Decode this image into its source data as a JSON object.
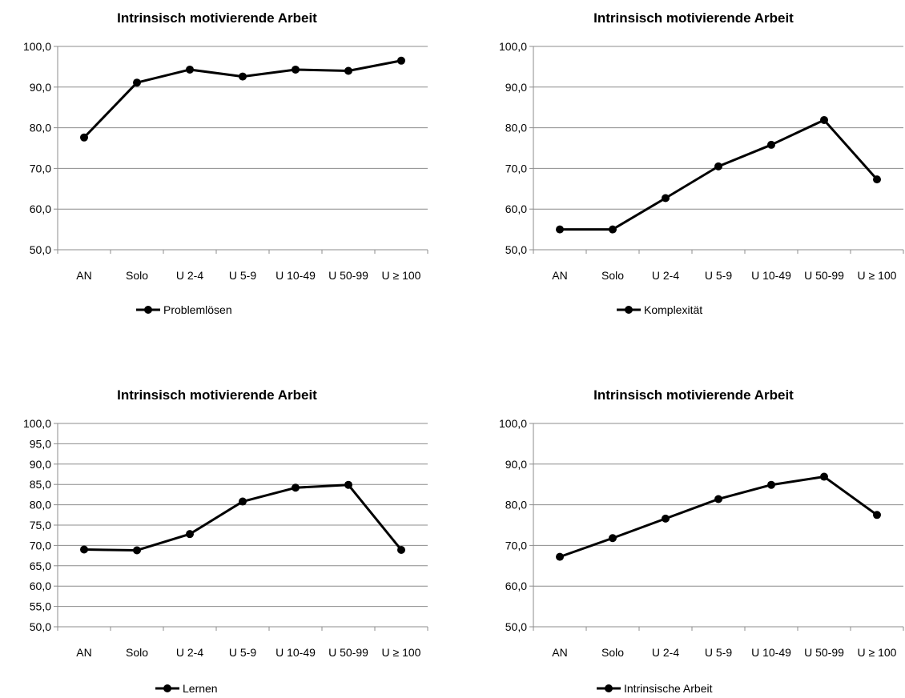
{
  "chart_data": [
    {
      "type": "line",
      "title": "Intrinsisch motivierende Arbeit",
      "categories": [
        "AN",
        "Solo",
        "U 2-4",
        "U 5-9",
        "U 10-49",
        "U 50-99",
        "U ≥ 100"
      ],
      "series": [
        {
          "name": "Problemlösen",
          "values": [
            77.6,
            91.1,
            94.3,
            92.6,
            94.3,
            94.0,
            96.5
          ]
        }
      ],
      "ylim": [
        50,
        100
      ],
      "yticks": [
        "50,0",
        "60,0",
        "70,0",
        "80,0",
        "90,0",
        "100,0"
      ],
      "grid": true,
      "legend": "bottom",
      "color": "#000000"
    },
    {
      "type": "line",
      "title": "Intrinsisch motivierende Arbeit",
      "categories": [
        "AN",
        "Solo",
        "U 2-4",
        "U 5-9",
        "U 10-49",
        "U 50-99",
        "U ≥ 100"
      ],
      "series": [
        {
          "name": "Komplexität",
          "values": [
            55.0,
            55.0,
            62.7,
            70.5,
            75.8,
            81.9,
            67.3
          ]
        }
      ],
      "ylim": [
        50,
        100
      ],
      "yticks": [
        "50,0",
        "60,0",
        "70,0",
        "80,0",
        "90,0",
        "100,0"
      ],
      "grid": true,
      "legend": "bottom",
      "color": "#000000"
    },
    {
      "type": "line",
      "title": "Intrinsisch motivierende Arbeit",
      "categories": [
        "AN",
        "Solo",
        "U 2-4",
        "U 5-9",
        "U 10-49",
        "U 50-99",
        "U ≥ 100"
      ],
      "series": [
        {
          "name": "Lernen",
          "values": [
            69.0,
            68.8,
            72.8,
            80.8,
            84.2,
            84.9,
            68.9
          ]
        }
      ],
      "ylim": [
        50,
        100
      ],
      "yticks": [
        "50,0",
        "55,0",
        "60,0",
        "65,0",
        "70,0",
        "75,0",
        "80,0",
        "85,0",
        "90,0",
        "95,0",
        "100,0"
      ],
      "grid": true,
      "legend": "bottom",
      "color": "#000000"
    },
    {
      "type": "line",
      "title": "Intrinsisch motivierende Arbeit",
      "categories": [
        "AN",
        "Solo",
        "U 2-4",
        "U 5-9",
        "U 10-49",
        "U 50-99",
        "U ≥ 100"
      ],
      "series": [
        {
          "name": "Intrinsische Arbeit",
          "values": [
            67.2,
            71.8,
            76.6,
            81.4,
            84.9,
            86.9,
            77.5
          ]
        }
      ],
      "ylim": [
        50,
        100
      ],
      "yticks": [
        "50,0",
        "60,0",
        "70,0",
        "80,0",
        "90,0",
        "100,0"
      ],
      "grid": true,
      "legend": "bottom",
      "color": "#000000"
    }
  ]
}
